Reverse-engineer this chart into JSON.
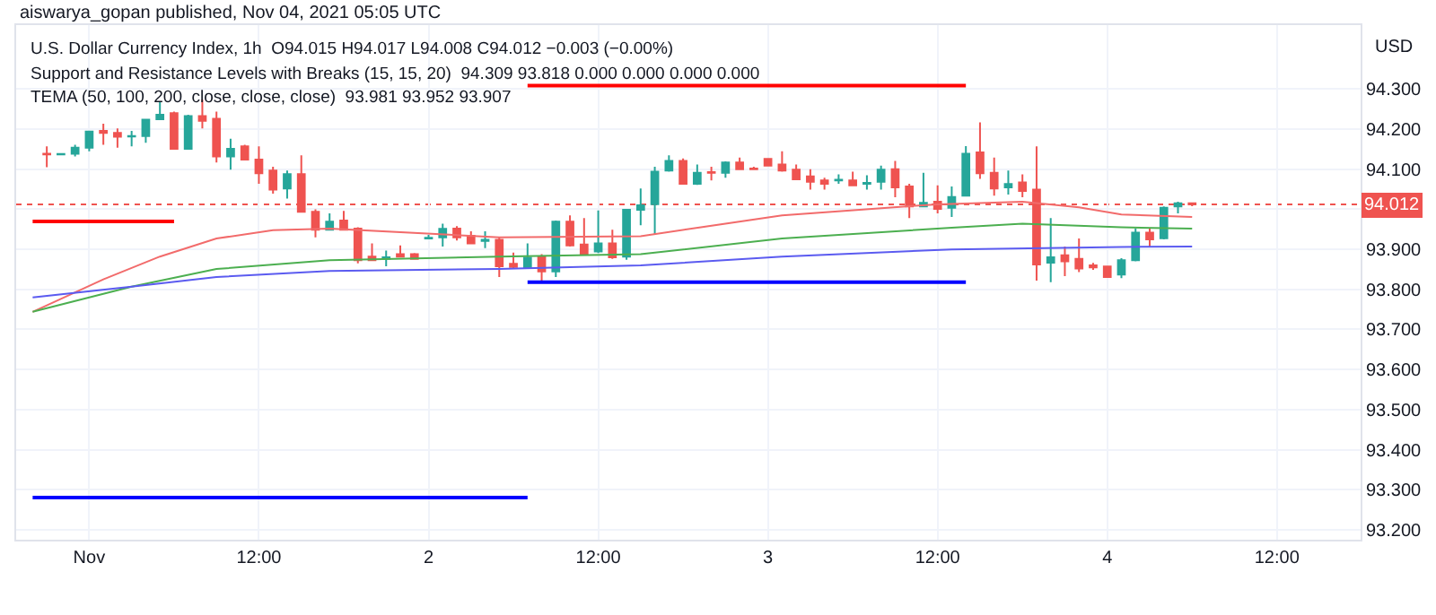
{
  "chart_data": {
    "type": "candlestick",
    "annotations": [
      "aiswarya_gopan published, Nov 04, 2021 05:05 UTC",
      "U.S. Dollar Currency Index, 1h  O94.015 H94.017 L94.008 C94.012 −0.003 (−0.00%)",
      "Support and Resistance Levels with Breaks (15, 15, 20)  94.309 93.818 0.000 0.000 0.000 0.000",
      "TEMA (50, 100, 200, close, close, close)  93.981 93.952 93.907",
      "USD"
    ],
    "x": [
      "2021-10-31T21:00",
      "2021-10-31T22:00",
      "2021-10-31T23:00",
      "2021-11-01T00:00",
      "2021-11-01T01:00",
      "2021-11-01T02:00",
      "2021-11-01T03:00",
      "2021-11-01T04:00",
      "2021-11-01T05:00",
      "2021-11-01T06:00",
      "2021-11-01T07:00",
      "2021-11-01T08:00",
      "2021-11-01T09:00",
      "2021-11-01T10:00",
      "2021-11-01T11:00",
      "2021-11-01T12:00",
      "2021-11-01T13:00",
      "2021-11-01T14:00",
      "2021-11-01T15:00",
      "2021-11-01T16:00",
      "2021-11-01T17:00",
      "2021-11-01T18:00",
      "2021-11-01T19:00",
      "2021-11-01T20:00",
      "2021-11-01T21:00",
      "2021-11-01T22:00",
      "2021-11-01T23:00",
      "2021-11-02T00:00",
      "2021-11-02T01:00",
      "2021-11-02T02:00",
      "2021-11-02T03:00",
      "2021-11-02T04:00",
      "2021-11-02T05:00",
      "2021-11-02T06:00",
      "2021-11-02T07:00",
      "2021-11-02T08:00",
      "2021-11-02T09:00",
      "2021-11-02T10:00",
      "2021-11-02T11:00",
      "2021-11-02T12:00",
      "2021-11-02T13:00",
      "2021-11-02T14:00",
      "2021-11-02T15:00",
      "2021-11-02T16:00",
      "2021-11-02T17:00",
      "2021-11-02T18:00",
      "2021-11-02T19:00",
      "2021-11-02T20:00",
      "2021-11-02T21:00",
      "2021-11-02T22:00",
      "2021-11-02T23:00",
      "2021-11-03T00:00",
      "2021-11-03T01:00",
      "2021-11-03T02:00",
      "2021-11-03T03:00",
      "2021-11-03T04:00",
      "2021-11-03T05:00",
      "2021-11-03T06:00",
      "2021-11-03T07:00",
      "2021-11-03T08:00",
      "2021-11-03T09:00",
      "2021-11-03T10:00",
      "2021-11-03T11:00",
      "2021-11-03T12:00",
      "2021-11-03T13:00",
      "2021-11-03T14:00",
      "2021-11-03T15:00",
      "2021-11-03T16:00",
      "2021-11-03T17:00",
      "2021-11-03T18:00",
      "2021-11-03T19:00",
      "2021-11-03T20:00",
      "2021-11-03T21:00",
      "2021-11-03T22:00",
      "2021-11-03T23:00",
      "2021-11-04T00:00",
      "2021-11-04T01:00",
      "2021-11-04T02:00",
      "2021-11-04T03:00",
      "2021-11-04T04:00",
      "2021-11-04T05:00",
      "2021-11-04T06:00"
    ],
    "ohlc": [
      [
        94.139,
        94.157,
        94.105,
        94.137
      ],
      [
        94.137,
        94.139,
        94.136,
        94.138
      ],
      [
        94.139,
        94.161,
        94.132,
        94.154
      ],
      [
        94.154,
        94.196,
        94.145,
        94.194
      ],
      [
        94.196,
        94.214,
        94.161,
        94.191
      ],
      [
        94.191,
        94.202,
        94.154,
        94.181
      ],
      [
        94.182,
        94.196,
        94.157,
        94.183
      ],
      [
        94.183,
        94.224,
        94.166,
        94.224
      ],
      [
        94.225,
        94.269,
        94.224,
        94.236
      ],
      [
        94.24,
        94.244,
        94.151,
        94.151
      ],
      [
        94.151,
        94.236,
        94.151,
        94.233
      ],
      [
        94.233,
        94.274,
        94.202,
        94.221
      ],
      [
        94.226,
        94.244,
        94.117,
        94.132
      ],
      [
        94.132,
        94.176,
        94.099,
        94.151
      ],
      [
        94.157,
        94.161,
        94.124,
        94.124
      ],
      [
        94.124,
        94.157,
        94.064,
        94.09
      ],
      [
        94.097,
        94.106,
        94.039,
        94.049
      ],
      [
        94.052,
        94.097,
        94.027,
        94.088
      ],
      [
        94.088,
        94.135,
        93.994,
        93.994
      ],
      [
        93.994,
        94.0,
        93.93,
        93.949
      ],
      [
        93.949,
        93.99,
        93.949,
        93.969
      ],
      [
        93.972,
        93.996,
        93.947,
        93.949
      ],
      [
        93.952,
        93.955,
        93.865,
        93.873
      ],
      [
        93.882,
        93.915,
        93.873,
        93.873
      ],
      [
        93.876,
        93.897,
        93.858,
        93.88
      ],
      [
        93.888,
        93.91,
        93.882,
        93.882
      ],
      [
        93.888,
        93.891,
        93.876,
        93.876
      ],
      [
        93.927,
        93.936,
        93.926,
        93.929
      ],
      [
        93.93,
        93.964,
        93.907,
        93.951
      ],
      [
        93.952,
        93.958,
        93.922,
        93.93
      ],
      [
        93.934,
        93.945,
        93.915,
        93.915
      ],
      [
        93.921,
        93.945,
        93.903,
        93.924
      ],
      [
        93.924,
        93.93,
        93.831,
        93.858
      ],
      [
        93.864,
        93.892,
        93.852,
        93.856
      ],
      [
        93.855,
        93.915,
        93.855,
        93.879
      ],
      [
        93.882,
        93.888,
        93.821,
        93.845
      ],
      [
        93.845,
        93.972,
        93.831,
        93.969
      ],
      [
        93.969,
        93.985,
        93.907,
        93.91
      ],
      [
        93.912,
        93.978,
        93.888,
        93.889
      ],
      [
        93.895,
        93.997,
        93.891,
        93.915
      ],
      [
        93.915,
        93.949,
        93.876,
        93.88
      ],
      [
        93.882,
        94.001,
        93.874,
        93.999
      ],
      [
        93.999,
        94.052,
        93.96,
        94.01
      ],
      [
        94.013,
        94.106,
        93.937,
        94.094
      ],
      [
        94.097,
        94.135,
        94.094,
        94.121
      ],
      [
        94.121,
        94.127,
        94.064,
        94.064
      ],
      [
        94.064,
        94.112,
        94.061,
        94.091
      ],
      [
        94.093,
        94.106,
        94.072,
        94.091
      ],
      [
        94.091,
        94.12,
        94.079,
        94.117
      ],
      [
        94.117,
        94.129,
        94.1,
        94.1
      ],
      [
        94.102,
        94.106,
        94.099,
        94.1
      ],
      [
        94.126,
        94.126,
        94.109,
        94.109
      ],
      [
        94.112,
        94.145,
        94.094,
        94.097
      ],
      [
        94.099,
        94.112,
        94.075,
        94.075
      ],
      [
        94.082,
        94.1,
        94.049,
        94.069
      ],
      [
        94.072,
        94.079,
        94.049,
        94.064
      ],
      [
        94.072,
        94.087,
        94.064,
        94.074
      ],
      [
        94.072,
        94.094,
        94.06,
        94.06
      ],
      [
        94.064,
        94.085,
        94.049,
        94.066
      ],
      [
        94.069,
        94.109,
        94.049,
        94.099
      ],
      [
        94.1,
        94.121,
        94.03,
        94.055
      ],
      [
        94.057,
        94.064,
        93.978,
        94.007
      ],
      [
        94.007,
        94.091,
        94.007,
        94.016
      ],
      [
        94.019,
        94.06,
        93.99,
        94.001
      ],
      [
        94.004,
        94.057,
        93.981,
        94.031
      ],
      [
        94.034,
        94.158,
        94.034,
        94.139
      ],
      [
        94.142,
        94.217,
        94.076,
        94.09
      ],
      [
        94.091,
        94.129,
        94.034,
        94.052
      ],
      [
        94.055,
        94.097,
        94.037,
        94.063
      ],
      [
        94.067,
        94.087,
        94.03,
        94.046
      ],
      [
        94.049,
        94.157,
        93.822,
        93.862
      ],
      [
        93.867,
        93.978,
        93.818,
        93.88
      ],
      [
        93.885,
        93.907,
        93.833,
        93.87
      ],
      [
        93.876,
        93.927,
        93.843,
        93.852
      ],
      [
        93.86,
        93.866,
        93.849,
        93.855
      ],
      [
        93.857,
        93.858,
        93.83,
        93.831
      ],
      [
        93.837,
        93.878,
        93.828,
        93.873
      ],
      [
        93.873,
        93.952,
        93.87,
        93.942
      ],
      [
        93.942,
        93.952,
        93.907,
        93.925
      ],
      [
        93.928,
        94.007,
        93.925,
        94.004
      ],
      [
        94.007,
        94.019,
        93.99,
        94.015
      ],
      [
        94.015,
        94.017,
        94.008,
        94.012
      ]
    ],
    "colors": [
      "#ef5350",
      "#26a69a",
      "#26a69a",
      "#26a69a",
      "#ef5350",
      "#ef5350",
      "#26a69a",
      "#26a69a",
      "#26a69a",
      "#ef5350",
      "#26a69a",
      "#ef5350",
      "#ef5350",
      "#26a69a",
      "#ef5350",
      "#ef5350",
      "#ef5350",
      "#26a69a",
      "#ef5350",
      "#ef5350",
      "#26a69a",
      "#ef5350",
      "#ef5350",
      "#ef5350",
      "#26a69a",
      "#ef5350",
      "#ef5350",
      "#26a69a",
      "#26a69a",
      "#ef5350",
      "#ef5350",
      "#26a69a",
      "#ef5350",
      "#ef5350",
      "#26a69a",
      "#ef5350",
      "#26a69a",
      "#ef5350",
      "#ef5350",
      "#26a69a",
      "#ef5350",
      "#26a69a",
      "#26a69a",
      "#26a69a",
      "#26a69a",
      "#ef5350",
      "#26a69a",
      "#ef5350",
      "#26a69a",
      "#ef5350",
      "#ef5350",
      "#ef5350",
      "#ef5350",
      "#ef5350",
      "#ef5350",
      "#ef5350",
      "#26a69a",
      "#ef5350",
      "#26a69a",
      "#26a69a",
      "#ef5350",
      "#ef5350",
      "#26a69a",
      "#ef5350",
      "#26a69a",
      "#26a69a",
      "#ef5350",
      "#ef5350",
      "#26a69a",
      "#ef5350",
      "#ef5350",
      "#26a69a",
      "#ef5350",
      "#ef5350",
      "#ef5350",
      "#ef5350",
      "#26a69a",
      "#26a69a",
      "#ef5350",
      "#26a69a",
      "#26a69a",
      "#ef5350"
    ],
    "series": [
      {
        "type": "line",
        "color": "#f26b6b",
        "x": [
          "2021-10-31T20:00",
          "2021-11-01T01:00",
          "2021-11-01T05:00",
          "2021-11-01T09:00",
          "2021-11-01T13:00",
          "2021-11-01T17:00",
          "2021-11-02T05:00",
          "2021-11-02T15:00",
          "2021-11-03T01:00",
          "2021-11-03T10:00",
          "2021-11-03T12:00",
          "2021-11-03T18:00",
          "2021-11-03T22:00",
          "2021-11-04T01:00",
          "2021-11-04T06:00"
        ],
        "values": [
          93.744,
          93.825,
          93.882,
          93.927,
          93.948,
          93.952,
          93.93,
          93.933,
          93.985,
          94.008,
          94.012,
          94.019,
          94.005,
          93.987,
          93.981
        ]
      },
      {
        "type": "line",
        "color": "#4caf50",
        "x": [
          "2021-10-31T20:00",
          "2021-11-01T03:00",
          "2021-11-01T09:00",
          "2021-11-01T17:00",
          "2021-11-02T05:00",
          "2021-11-02T15:00",
          "2021-11-03T01:00",
          "2021-11-03T13:00",
          "2021-11-03T18:00",
          "2021-11-04T01:00",
          "2021-11-04T06:00"
        ],
        "values": [
          93.744,
          93.807,
          93.851,
          93.873,
          93.882,
          93.888,
          93.927,
          93.954,
          93.964,
          93.955,
          93.952
        ]
      },
      {
        "type": "line",
        "color": "#5b5bf0",
        "x": [
          "2021-10-31T20:00",
          "2021-11-01T03:00",
          "2021-11-01T09:00",
          "2021-11-01T17:00",
          "2021-11-02T05:00",
          "2021-11-02T15:00",
          "2021-11-03T01:00",
          "2021-11-03T13:00",
          "2021-11-04T01:00",
          "2021-11-04T06:00"
        ],
        "values": [
          93.78,
          93.807,
          93.831,
          93.846,
          93.851,
          93.86,
          93.882,
          93.9,
          93.906,
          93.907
        ]
      },
      {
        "type": "line",
        "color": "#ff0000",
        "x": [
          "2021-11-02T07:00",
          "2021-11-03T14:00"
        ],
        "values": [
          94.309,
          94.309
        ]
      },
      {
        "type": "line",
        "color": "#ff0000",
        "x": [
          "2021-10-31T20:00",
          "2021-11-01T06:00"
        ],
        "values": [
          93.97,
          93.97
        ]
      },
      {
        "type": "line",
        "color": "#0000ff",
        "x": [
          "2021-11-02T07:00",
          "2021-11-03T14:00"
        ],
        "values": [
          93.818,
          93.818
        ]
      },
      {
        "type": "line",
        "color": "#0000ff",
        "x": [
          "2021-10-31T20:00",
          "2021-11-02T07:00"
        ],
        "values": [
          93.28,
          93.28
        ]
      }
    ],
    "ref_lines": [
      {
        "axis": "y",
        "value": 94.012,
        "label": "94.012",
        "color": "#ef5350",
        "line_style": "dotted"
      }
    ],
    "xlim": [
      "2021-10-31T18:50",
      "2021-11-04T17:55"
    ],
    "xticks": [
      {
        "value": "2021-11-01T00:00",
        "label": "Nov"
      },
      {
        "value": "2021-11-01T12:00",
        "label": "12:00"
      },
      {
        "value": "2021-11-02T00:00",
        "label": "2"
      },
      {
        "value": "2021-11-02T12:00",
        "label": "12:00"
      },
      {
        "value": "2021-11-03T00:00",
        "label": "3"
      },
      {
        "value": "2021-11-03T12:00",
        "label": "12:00"
      },
      {
        "value": "2021-11-04T00:00",
        "label": "4"
      },
      {
        "value": "2021-11-04T12:00",
        "label": "12:00"
      }
    ],
    "ylim": [
      93.175,
      94.46
    ],
    "yticks": [
      {
        "value": 93.2,
        "label": "93.200"
      },
      {
        "value": 93.3,
        "label": "93.300"
      },
      {
        "value": 93.4,
        "label": "93.400"
      },
      {
        "value": 93.5,
        "label": "93.500"
      },
      {
        "value": 93.6,
        "label": "93.600"
      },
      {
        "value": 93.7,
        "label": "93.700"
      },
      {
        "value": 93.8,
        "label": "93.800"
      },
      {
        "value": 93.9,
        "label": "93.900"
      },
      {
        "value": 94.0,
        "label": null
      },
      {
        "value": 94.1,
        "label": "94.100"
      },
      {
        "value": 94.2,
        "label": "94.200"
      },
      {
        "value": 94.3,
        "label": "94.300"
      }
    ],
    "grid": true
  }
}
